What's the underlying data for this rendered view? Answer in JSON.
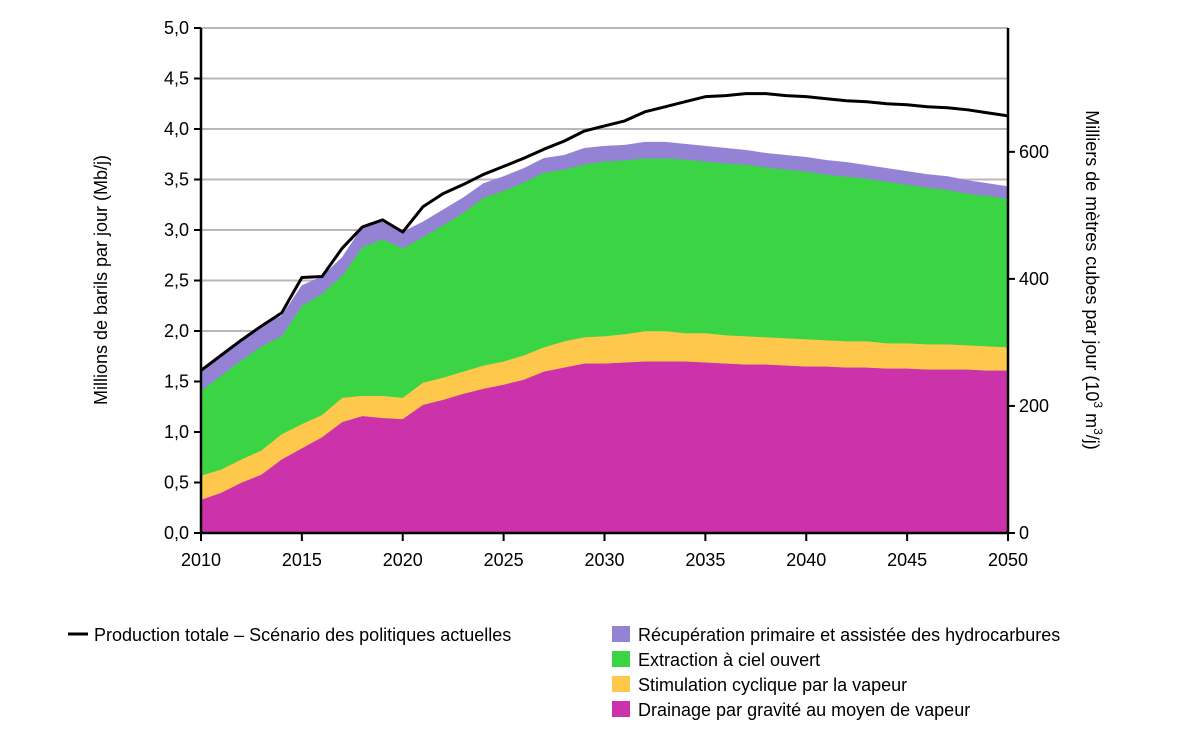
{
  "chart_data": {
    "type": "area",
    "stacked": true,
    "title": "",
    "x": [
      2010,
      2011,
      2012,
      2013,
      2014,
      2015,
      2016,
      2017,
      2018,
      2019,
      2020,
      2021,
      2022,
      2023,
      2024,
      2025,
      2026,
      2027,
      2028,
      2029,
      2030,
      2031,
      2032,
      2033,
      2034,
      2035,
      2036,
      2037,
      2038,
      2039,
      2040,
      2041,
      2042,
      2043,
      2044,
      2045,
      2046,
      2047,
      2048,
      2049,
      2050
    ],
    "xlim": [
      2010,
      2050
    ],
    "x_ticks": [
      "2010",
      "2015",
      "2020",
      "2025",
      "2030",
      "2035",
      "2040",
      "2045",
      "2050"
    ],
    "y_left": {
      "label": "Millions de barils par jour (Mb/j)",
      "ylim": [
        0,
        5
      ],
      "ticks": [
        "0,0",
        "0,5",
        "1,0",
        "1,5",
        "2,0",
        "2,5",
        "3,0",
        "3,5",
        "4,0",
        "4,5",
        "5,0"
      ]
    },
    "y_right": {
      "label_main": "Milliers de mètres cubes par jour (10",
      "label_sup1": "3",
      "label_mid": " m",
      "label_sup2": "3",
      "label_end": "/j)",
      "ticks": [
        "0",
        "200",
        "400",
        "600"
      ]
    },
    "grid": true,
    "legend_placement": "bottom",
    "series": [
      {
        "name": "Drainage par gravité au moyen de vapeur",
        "color": "#cc33aa",
        "values": [
          0.33,
          0.4,
          0.5,
          0.58,
          0.73,
          0.84,
          0.95,
          1.1,
          1.16,
          1.14,
          1.13,
          1.27,
          1.32,
          1.38,
          1.43,
          1.47,
          1.52,
          1.6,
          1.64,
          1.68,
          1.68,
          1.69,
          1.7,
          1.7,
          1.7,
          1.69,
          1.68,
          1.67,
          1.67,
          1.66,
          1.65,
          1.65,
          1.64,
          1.64,
          1.63,
          1.63,
          1.62,
          1.62,
          1.62,
          1.61,
          1.61
        ]
      },
      {
        "name": "Stimulation cyclique par la vapeur",
        "color": "#fdc84b",
        "values": [
          0.24,
          0.23,
          0.23,
          0.24,
          0.25,
          0.24,
          0.22,
          0.24,
          0.2,
          0.22,
          0.21,
          0.22,
          0.22,
          0.22,
          0.23,
          0.23,
          0.24,
          0.24,
          0.26,
          0.26,
          0.27,
          0.28,
          0.3,
          0.3,
          0.28,
          0.29,
          0.28,
          0.28,
          0.27,
          0.27,
          0.27,
          0.26,
          0.26,
          0.26,
          0.25,
          0.25,
          0.25,
          0.25,
          0.24,
          0.24,
          0.23
        ]
      },
      {
        "name": "Extraction à ciel ouvert",
        "color": "#3ad444",
        "values": [
          0.84,
          0.93,
          0.98,
          1.03,
          0.97,
          1.17,
          1.2,
          1.21,
          1.47,
          1.55,
          1.48,
          1.44,
          1.51,
          1.57,
          1.66,
          1.69,
          1.71,
          1.73,
          1.7,
          1.71,
          1.73,
          1.72,
          1.71,
          1.71,
          1.72,
          1.7,
          1.7,
          1.7,
          1.68,
          1.67,
          1.66,
          1.64,
          1.63,
          1.61,
          1.6,
          1.57,
          1.55,
          1.53,
          1.5,
          1.49,
          1.47
        ]
      },
      {
        "name": "Récupération primaire et assistée des hydrocarbures",
        "color": "#9482d4",
        "values": [
          0.2,
          0.2,
          0.2,
          0.2,
          0.2,
          0.2,
          0.17,
          0.18,
          0.2,
          0.17,
          0.16,
          0.15,
          0.15,
          0.15,
          0.14,
          0.14,
          0.14,
          0.14,
          0.14,
          0.16,
          0.15,
          0.15,
          0.16,
          0.16,
          0.15,
          0.15,
          0.15,
          0.14,
          0.14,
          0.14,
          0.14,
          0.14,
          0.14,
          0.13,
          0.13,
          0.13,
          0.13,
          0.13,
          0.13,
          0.12,
          0.12
        ]
      }
    ],
    "total_line": {
      "name": "Production totale – Scénario des politiques actuelles",
      "color": "#000000",
      "values": [
        1.61,
        1.76,
        1.91,
        2.05,
        2.18,
        2.53,
        2.54,
        2.82,
        3.03,
        3.1,
        2.98,
        3.23,
        3.36,
        3.45,
        3.55,
        3.63,
        3.71,
        3.8,
        3.88,
        3.98,
        4.03,
        4.08,
        4.17,
        4.22,
        4.27,
        4.32,
        4.33,
        4.35,
        4.35,
        4.33,
        4.32,
        4.3,
        4.28,
        4.27,
        4.25,
        4.24,
        4.22,
        4.21,
        4.19,
        4.16,
        4.13
      ]
    }
  }
}
